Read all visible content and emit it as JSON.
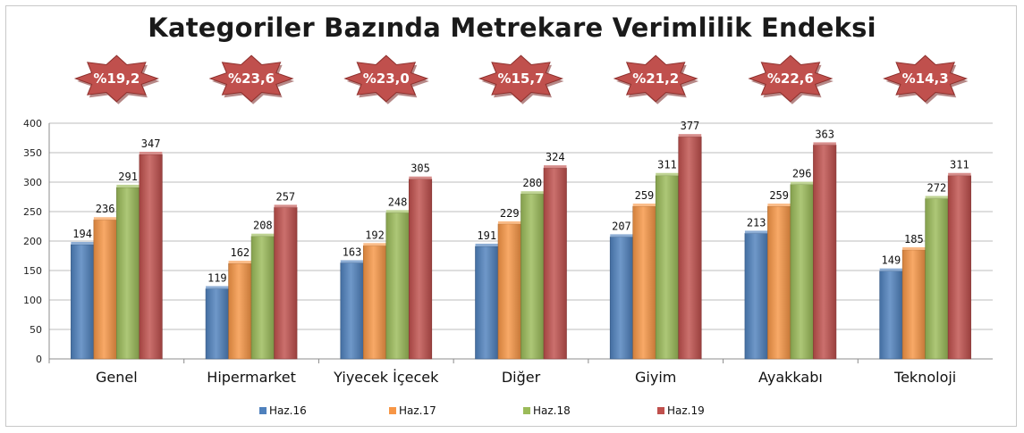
{
  "chart_data": {
    "type": "bar",
    "title": "Kategoriler Bazında Metrekare Verimlilik Endeksi",
    "categories": [
      "Genel",
      "Hipermarket",
      "Yiyecek İçecek",
      "Diğer",
      "Giyim",
      "Ayakkabı",
      "Teknoloji"
    ],
    "series": [
      {
        "name": "Haz.16",
        "values": [
          194,
          119,
          163,
          191,
          207,
          213,
          149
        ],
        "color": "#4f81bd"
      },
      {
        "name": "Haz.17",
        "values": [
          236,
          162,
          192,
          229,
          259,
          259,
          185
        ],
        "color": "#f79646"
      },
      {
        "name": "Haz.18",
        "values": [
          291,
          208,
          248,
          280,
          311,
          296,
          272
        ],
        "color": "#9bbb59"
      },
      {
        "name": "Haz.19",
        "values": [
          347,
          257,
          305,
          324,
          377,
          363,
          311
        ],
        "color": "#c0504d"
      }
    ],
    "badges": [
      "%19,2",
      "%23,6",
      "%23,0",
      "%15,7",
      "%21,2",
      "%22,6",
      "%14,3"
    ],
    "badge_color": "#c0504d",
    "ylim": [
      0,
      400
    ],
    "yticks": [
      0,
      50,
      100,
      150,
      200,
      250,
      300,
      350,
      400
    ],
    "grid": true,
    "legend_position": "bottom"
  }
}
